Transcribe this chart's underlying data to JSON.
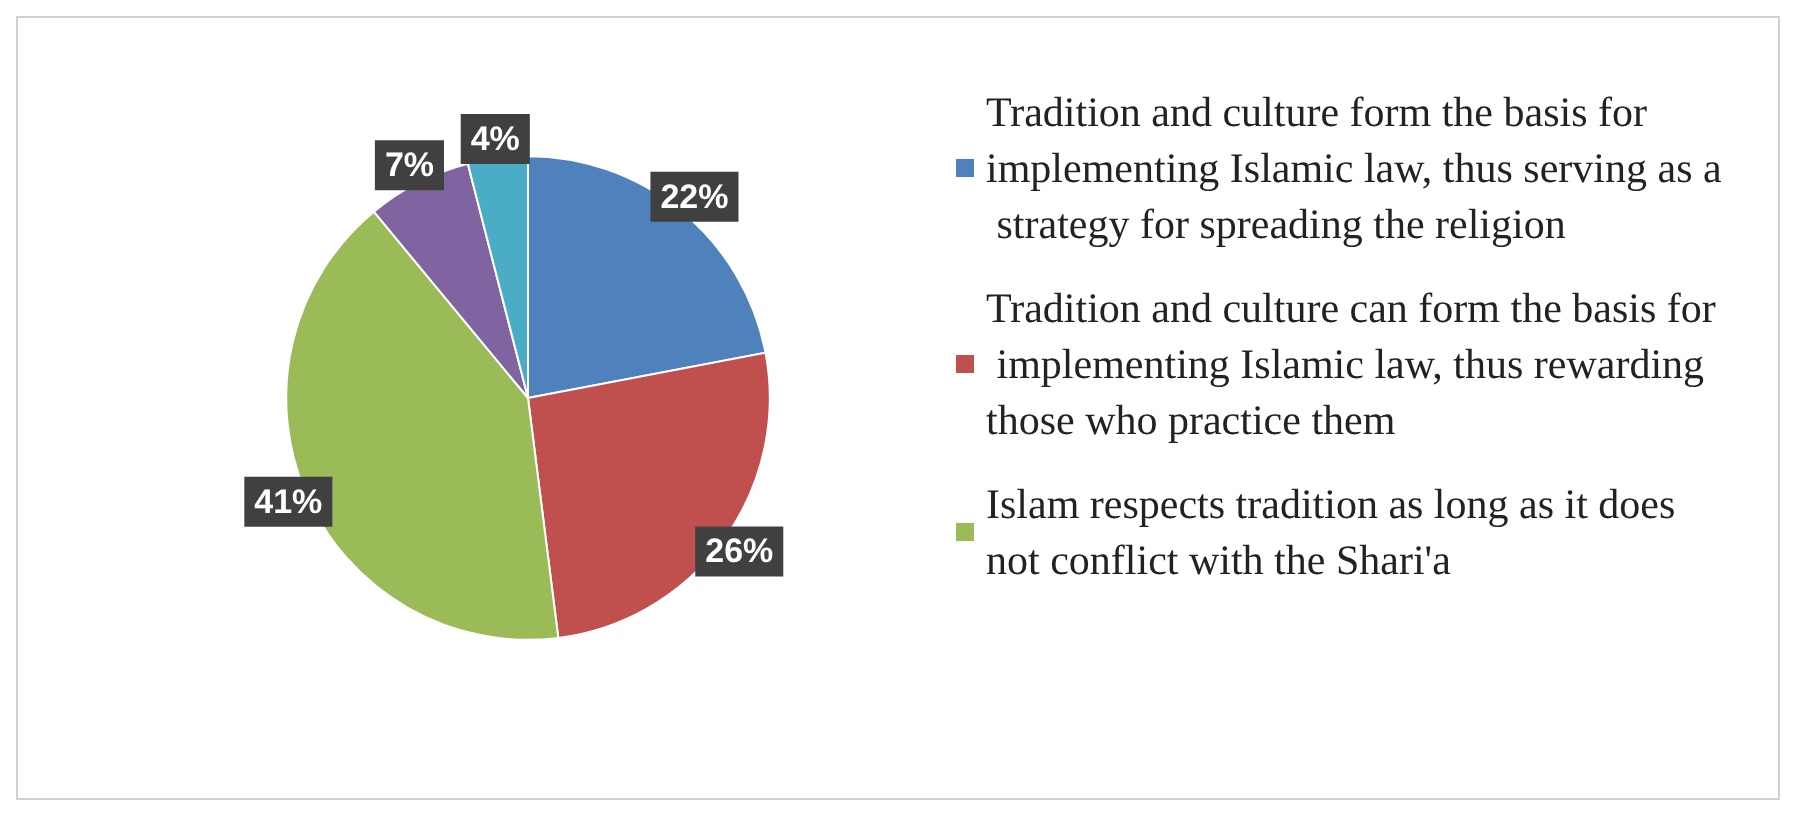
{
  "chart_data": {
    "type": "pie",
    "categories": [
      "Tradition and culture form the basis for implementing Islamic law, thus serving as a strategy for spreading the religion",
      "Tradition and culture can form the basis for implementing Islamic law, thus rewarding those who practice them",
      "Islam respects tradition as long as it does not conflict with the Shari'a",
      null,
      null
    ],
    "values": [
      22,
      26,
      41,
      7,
      4
    ],
    "value_labels": [
      "22%",
      "26%",
      "41%",
      "7%",
      "4%"
    ],
    "colors": [
      "#4f81bd",
      "#c0504d",
      "#9bbb59",
      "#8064a2",
      "#4bacc6"
    ],
    "legend": "right"
  }
}
